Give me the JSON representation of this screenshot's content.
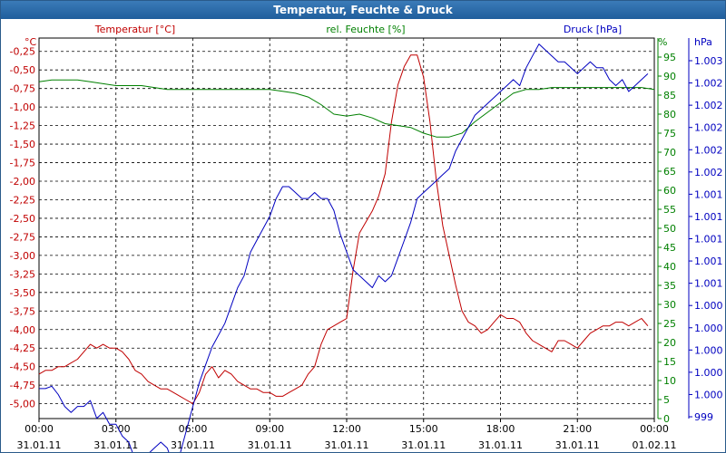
{
  "window": {
    "title": "Temperatur, Feuchte & Druck"
  },
  "colors": {
    "temperature": "#c00000",
    "humidity": "#008000",
    "pressure": "#0000c0",
    "titlebar": "#1f5e9c"
  },
  "chart_data": {
    "type": "line",
    "title": "Temperatur, Feuchte & Druck",
    "grid": true,
    "x_ticks": [
      {
        "time": "00:00",
        "date": "31.01.11"
      },
      {
        "time": "03:00",
        "date": "31.01.11"
      },
      {
        "time": "06:00",
        "date": "31.01.11"
      },
      {
        "time": "09:00",
        "date": "31.01.11"
      },
      {
        "time": "12:00",
        "date": "31.01.11"
      },
      {
        "time": "15:00",
        "date": "31.01.11"
      },
      {
        "time": "18:00",
        "date": "31.01.11"
      },
      {
        "time": "21:00",
        "date": "31.01.11"
      },
      {
        "time": "00:00",
        "date": "01.02.11"
      }
    ],
    "axes": {
      "temperature": {
        "label": "Temperatur [°C]",
        "unit": "°C",
        "ylim": [
          -5.2,
          -0.07
        ],
        "ticks": [
          "-0,25",
          "-0,50",
          "-0,75",
          "-1,00",
          "-1,25",
          "-1,50",
          "-1,75",
          "-2,00",
          "-2,25",
          "-2,50",
          "-2,75",
          "-3,00",
          "-3,25",
          "-3,50",
          "-3,75",
          "-4,00",
          "-4,25",
          "-4,50",
          "-4,75",
          "-5,00"
        ]
      },
      "humidity": {
        "label": "rel. Feuchte [%]",
        "unit": "%",
        "ylim": [
          0,
          100
        ],
        "ticks": [
          "0",
          "5",
          "10",
          "15",
          "20",
          "25",
          "30",
          "35",
          "40",
          "45",
          "50",
          "55",
          "60",
          "65",
          "70",
          "75",
          "80",
          "85",
          "90",
          "95"
        ]
      },
      "pressure": {
        "label": "Druck [hPa]",
        "unit": "hPa",
        "ylim": [
          999.998,
          1003.2
        ],
        "ticks": [
          "999",
          "1.000",
          "1.000",
          "1.000",
          "1.000",
          "1.000",
          "1.001",
          "1.001",
          "1.001",
          "1.001",
          "1.001",
          "1.002",
          "1.002",
          "1.002",
          "1.002",
          "1.002",
          "1.003"
        ]
      }
    },
    "series": [
      {
        "name": "Temperatur [°C]",
        "axis": "temperature",
        "x": [
          0,
          0.25,
          0.5,
          0.75,
          1,
          1.25,
          1.5,
          1.75,
          2,
          2.25,
          2.5,
          2.75,
          3,
          3.25,
          3.5,
          3.75,
          4,
          4.25,
          4.5,
          4.75,
          5,
          5.25,
          5.5,
          5.75,
          6,
          6.25,
          6.5,
          6.75,
          7,
          7.25,
          7.5,
          7.75,
          8,
          8.25,
          8.5,
          8.75,
          9,
          9.25,
          9.5,
          9.75,
          10,
          10.25,
          10.5,
          10.75,
          11,
          11.25,
          11.5,
          11.75,
          12,
          12.25,
          12.5,
          12.75,
          13,
          13.25,
          13.5,
          13.75,
          14,
          14.25,
          14.5,
          14.75,
          15,
          15.25,
          15.5,
          15.75,
          16,
          16.25,
          16.5,
          16.75,
          17,
          17.25,
          17.5,
          17.75,
          18,
          18.25,
          18.5,
          18.75,
          19,
          19.25,
          19.5,
          19.75,
          20,
          20.25,
          20.5,
          20.75,
          21,
          21.25,
          21.5,
          21.75,
          22,
          22.25,
          22.5,
          22.75,
          23,
          23.25,
          23.5,
          23.75
        ],
        "values": [
          -4.6,
          -4.55,
          -4.55,
          -4.5,
          -4.5,
          -4.45,
          -4.4,
          -4.3,
          -4.2,
          -4.25,
          -4.2,
          -4.25,
          -4.25,
          -4.3,
          -4.4,
          -4.55,
          -4.6,
          -4.7,
          -4.75,
          -4.8,
          -4.8,
          -4.85,
          -4.9,
          -4.95,
          -5.0,
          -4.85,
          -4.6,
          -4.5,
          -4.65,
          -4.55,
          -4.6,
          -4.7,
          -4.75,
          -4.8,
          -4.8,
          -4.85,
          -4.85,
          -4.9,
          -4.9,
          -4.85,
          -4.8,
          -4.75,
          -4.6,
          -4.5,
          -4.2,
          -4.0,
          -3.95,
          -3.9,
          -3.85,
          -3.2,
          -2.7,
          -2.55,
          -2.4,
          -2.2,
          -1.9,
          -1.2,
          -0.7,
          -0.45,
          -0.3,
          -0.3,
          -0.6,
          -1.2,
          -2.0,
          -2.6,
          -3.0,
          -3.4,
          -3.75,
          -3.9,
          -3.95,
          -4.05,
          -4.0,
          -3.9,
          -3.8,
          -3.85,
          -3.85,
          -3.9,
          -4.05,
          -4.15,
          -4.2,
          -4.25,
          -4.3,
          -4.15,
          -4.15,
          -4.2,
          -4.25,
          -4.15,
          -4.05,
          -4.0,
          -3.95,
          -3.95,
          -3.9,
          -3.9,
          -3.95,
          -3.9,
          -3.85,
          -3.95
        ]
      },
      {
        "name": "rel. Feuchte [%]",
        "axis": "humidity",
        "x": [
          0,
          0.5,
          1,
          1.5,
          2,
          2.5,
          3,
          3.5,
          4,
          4.5,
          5,
          5.5,
          6,
          6.5,
          7,
          7.5,
          8,
          8.5,
          9,
          9.5,
          10,
          10.5,
          11,
          11.5,
          12,
          12.5,
          13,
          13.5,
          14,
          14.5,
          15,
          15.5,
          16,
          16.5,
          17,
          17.5,
          18,
          18.5,
          19,
          19.5,
          20,
          20.5,
          21,
          21.5,
          22,
          22.5,
          23,
          23.5,
          24
        ],
        "values": [
          88.5,
          89,
          89,
          89,
          88.5,
          88,
          87.5,
          87.5,
          87.5,
          87,
          86.5,
          86.5,
          86.5,
          86.5,
          86.5,
          86.5,
          86.5,
          86.5,
          86.5,
          86,
          85.5,
          84.5,
          82.5,
          80,
          79.5,
          80,
          79,
          77.5,
          77,
          76.5,
          75,
          74,
          74,
          75,
          78,
          80.5,
          83,
          85.5,
          86.5,
          86.5,
          87,
          87,
          87,
          87,
          87,
          87,
          87,
          87,
          86.5
        ]
      },
      {
        "name": "Druck [hPa]",
        "axis": "pressure",
        "x": [
          0,
          0.25,
          0.5,
          0.75,
          1,
          1.25,
          1.5,
          1.75,
          2,
          2.25,
          2.5,
          2.75,
          3,
          3.25,
          3.5,
          3.75,
          4,
          4.25,
          4.5,
          4.75,
          5,
          5.25,
          5.5,
          5.75,
          6,
          6.25,
          6.5,
          6.75,
          7,
          7.25,
          7.5,
          7.75,
          8,
          8.25,
          8.5,
          8.75,
          9,
          9.25,
          9.5,
          9.75,
          10,
          10.25,
          10.5,
          10.75,
          11,
          11.25,
          11.5,
          11.75,
          12,
          12.25,
          12.5,
          12.75,
          13,
          13.25,
          13.5,
          13.75,
          14,
          14.25,
          14.5,
          14.75,
          15,
          15.25,
          15.5,
          15.75,
          16,
          16.25,
          16.5,
          16.75,
          17,
          17.25,
          17.5,
          17.75,
          18,
          18.25,
          18.5,
          18.75,
          19,
          19.25,
          19.5,
          19.75,
          20,
          20.25,
          20.5,
          20.75,
          21,
          21.25,
          21.5,
          21.75,
          22,
          22.25,
          22.5,
          22.75,
          23,
          23.25,
          23.5,
          23.75
        ],
        "values": [
          1000.25,
          1000.25,
          1000.27,
          1000.2,
          1000.1,
          1000.05,
          1000.1,
          1000.1,
          1000.15,
          1000.0,
          1000.05,
          999.95,
          999.95,
          999.85,
          999.8,
          999.65,
          999.65,
          999.7,
          999.75,
          999.8,
          999.75,
          999.6,
          999.7,
          999.9,
          1000.1,
          1000.3,
          1000.45,
          1000.6,
          1000.7,
          1000.8,
          1000.95,
          1001.1,
          1001.2,
          1001.4,
          1001.5,
          1001.6,
          1001.7,
          1001.85,
          1001.95,
          1001.95,
          1001.9,
          1001.85,
          1001.85,
          1001.9,
          1001.85,
          1001.85,
          1001.75,
          1001.55,
          1001.4,
          1001.25,
          1001.2,
          1001.15,
          1001.1,
          1001.2,
          1001.15,
          1001.2,
          1001.35,
          1001.5,
          1001.65,
          1001.85,
          1001.9,
          1001.95,
          1002.0,
          1002.05,
          1002.1,
          1002.25,
          1002.35,
          1002.45,
          1002.55,
          1002.6,
          1002.65,
          1002.7,
          1002.75,
          1002.8,
          1002.85,
          1002.8,
          1002.95,
          1003.05,
          1003.15,
          1003.1,
          1003.05,
          1003.0,
          1003.0,
          1002.95,
          1002.9,
          1002.95,
          1003.0,
          1002.95,
          1002.95,
          1002.85,
          1002.8,
          1002.85,
          1002.75,
          1002.8,
          1002.85,
          1002.9
        ]
      }
    ]
  }
}
